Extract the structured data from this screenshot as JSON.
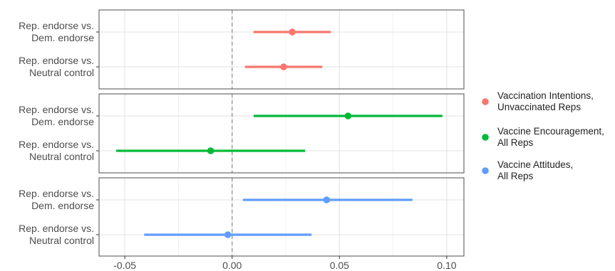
{
  "chart_data": {
    "type": "dot-and-whisker",
    "xlim": [
      -0.062,
      0.108
    ],
    "x_ticks": [
      -0.05,
      0.0,
      0.05,
      0.1
    ],
    "x_tick_labels": [
      "-0.05",
      "0.00",
      "0.05",
      "0.10"
    ],
    "reference_line": 0,
    "grid": true,
    "legend_position": "right",
    "categories": [
      [
        "Rep. endorse vs.",
        "Dem. endorse"
      ],
      [
        "Rep. endorse vs.",
        "Neutral control"
      ]
    ],
    "series": [
      {
        "name": [
          "Vaccination Intentions,",
          "Unvaccinated Reps"
        ],
        "color": "#F8766D",
        "points": [
          {
            "estimate": 0.028,
            "low": 0.01,
            "high": 0.046
          },
          {
            "estimate": 0.024,
            "low": 0.006,
            "high": 0.042
          }
        ]
      },
      {
        "name": [
          "Vaccine Encouragement,",
          "All Reps"
        ],
        "color": "#00BA38",
        "points": [
          {
            "estimate": 0.054,
            "low": 0.01,
            "high": 0.098
          },
          {
            "estimate": -0.01,
            "low": -0.054,
            "high": 0.034
          }
        ]
      },
      {
        "name": [
          "Vaccine Attitudes,",
          "All Reps"
        ],
        "color": "#619CFF",
        "points": [
          {
            "estimate": 0.044,
            "low": 0.005,
            "high": 0.084
          },
          {
            "estimate": -0.002,
            "low": -0.041,
            "high": 0.037
          }
        ]
      }
    ]
  }
}
